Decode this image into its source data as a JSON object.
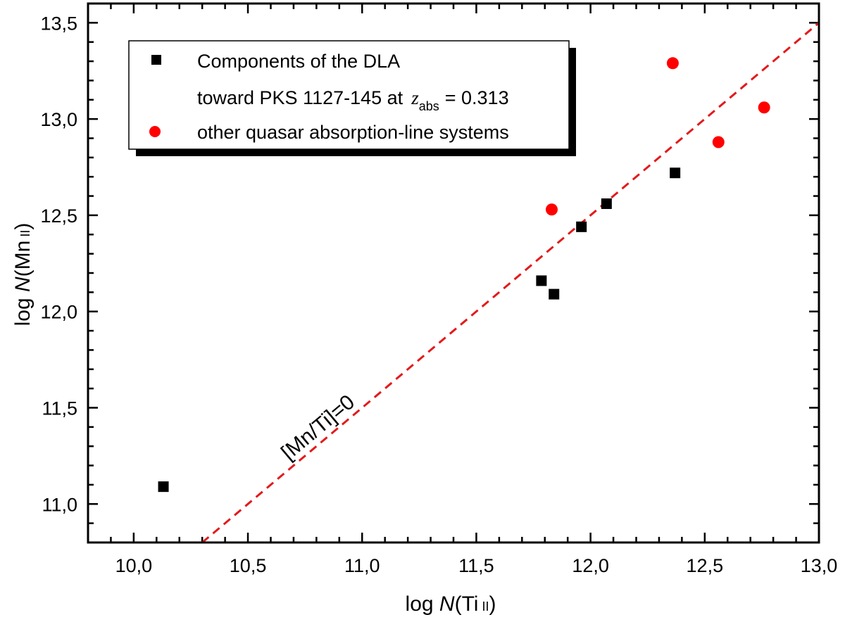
{
  "chart_data": {
    "type": "scatter",
    "title": "",
    "xlabel": {
      "prefix": "log ",
      "italic": "N",
      "open": "(Ti",
      "ion": "II",
      "close": ")"
    },
    "ylabel": {
      "prefix": "log ",
      "italic": "N",
      "open": "(Mn",
      "ion": "II",
      "close": ")"
    },
    "xlim": [
      9.8,
      13.0
    ],
    "ylim": [
      10.8,
      13.6
    ],
    "xticks": [
      10.0,
      10.5,
      11.0,
      11.5,
      12.0,
      12.5,
      13.0
    ],
    "xtick_labels": [
      "10,0",
      "10,5",
      "11,0",
      "11,5",
      "12,0",
      "12,5",
      "13,0"
    ],
    "yticks": [
      11.0,
      11.5,
      12.0,
      12.5,
      13.0,
      13.5
    ],
    "ytick_labels": [
      "11,0",
      "11,5",
      "12,0",
      "12,5",
      "13,0",
      "13,5"
    ],
    "grid": false,
    "legend_position": "top-left",
    "series": [
      {
        "name": "Components of the DLA toward PKS 1127-145 at z_abs = 0.313",
        "marker": "square",
        "color": "#000000",
        "x": [
          10.13,
          11.785,
          11.84,
          11.96,
          12.07,
          12.37
        ],
        "y": [
          11.09,
          12.16,
          12.09,
          12.44,
          12.56,
          12.72
        ]
      },
      {
        "name": "other quasar absorption-line systems",
        "marker": "circle",
        "color": "#ff0000",
        "x": [
          11.83,
          12.36,
          12.56,
          12.76
        ],
        "y": [
          12.53,
          13.29,
          12.88,
          13.06
        ]
      }
    ],
    "reference_line": {
      "label": "[Mn/Ti]=0",
      "slope": 1.0,
      "intercept": 0.5,
      "style": "dashed",
      "color": "#e31a1c"
    },
    "legend": {
      "line1": "Components of the DLA",
      "line2": "toward PKS 1127-145 at",
      "z_symbol": "z",
      "z_subscript": "abs",
      "z_value": "= 0.313",
      "line3": "other quasar absorption-line systems"
    }
  }
}
